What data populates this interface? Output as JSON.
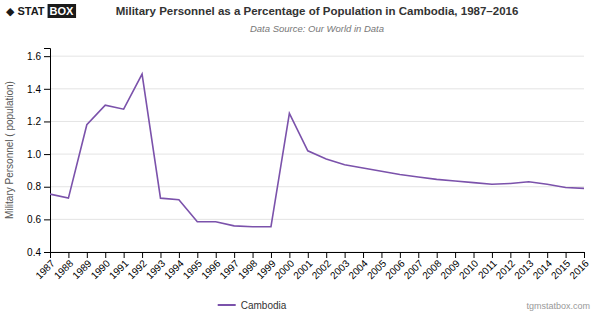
{
  "chart_data": {
    "type": "line",
    "title": "Military Personnel as a Percentage of Population in Cambodia, 1987–2016",
    "subtitle": "Data Source: Our World in Data",
    "y_label": "Military Personnel ( population)",
    "annotations": [
      "◆",
      "STAT",
      "BOX",
      "tgmstatbox.com"
    ],
    "x": [
      1987,
      1988,
      1989,
      1990,
      1991,
      1992,
      1993,
      1994,
      1995,
      1996,
      1997,
      1998,
      1999,
      2000,
      2001,
      2002,
      2003,
      2004,
      2005,
      2006,
      2007,
      2008,
      2009,
      2010,
      2011,
      2012,
      2013,
      2014,
      2015,
      2016
    ],
    "series": [
      {
        "name": "Cambodia",
        "color": "#7b52ab",
        "values": [
          0.755,
          0.73,
          1.18,
          1.3,
          1.275,
          1.49,
          0.73,
          0.72,
          0.585,
          0.585,
          0.56,
          0.555,
          0.555,
          1.25,
          1.02,
          0.97,
          0.935,
          0.915,
          0.895,
          0.875,
          0.86,
          0.845,
          0.835,
          0.825,
          0.815,
          0.82,
          0.83,
          0.815,
          0.795,
          0.79
        ]
      }
    ],
    "xlim": [
      1987,
      2016
    ],
    "xticks": [
      1987,
      1988,
      1989,
      1990,
      1991,
      1992,
      1993,
      1994,
      1995,
      1996,
      1997,
      1998,
      1999,
      2000,
      2001,
      2002,
      2003,
      2004,
      2005,
      2006,
      2007,
      2008,
      2009,
      2010,
      2011,
      2012,
      2013,
      2014,
      2015,
      2016
    ],
    "ylim": [
      0.4,
      1.65
    ],
    "yticks": [
      0.4,
      0.6,
      0.8,
      {
        "value": 1.0,
        "label": "1.0"
      },
      1.2,
      1.4,
      1.6
    ],
    "grid": true,
    "legend": "bottom"
  }
}
